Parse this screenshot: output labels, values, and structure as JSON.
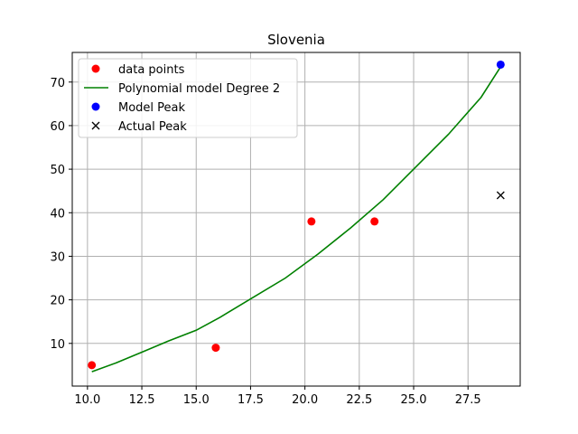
{
  "chart_data": {
    "type": "scatter",
    "title": "Slovenia",
    "xlabel": "",
    "ylabel": "",
    "xlim": [
      9.3,
      29.9
    ],
    "ylim": [
      0.2,
      76.8
    ],
    "xticks": [
      10.0,
      12.5,
      15.0,
      17.5,
      20.0,
      22.5,
      25.0,
      27.5
    ],
    "xtick_labels": [
      "10.0",
      "12.5",
      "15.0",
      "17.5",
      "20.0",
      "22.5",
      "25.0",
      "27.5"
    ],
    "yticks": [
      10,
      20,
      30,
      40,
      50,
      60,
      70
    ],
    "ytick_labels": [
      "10",
      "20",
      "30",
      "40",
      "50",
      "60",
      "70"
    ],
    "grid": true,
    "legend_placement": "top-left",
    "legend": [
      {
        "label": "data points",
        "marker": "circle",
        "color": "#ff0000"
      },
      {
        "label": "Polynomial model Degree 2",
        "marker": "line",
        "color": "#008000"
      },
      {
        "label": "Model Peak",
        "marker": "circle",
        "color": "#0000ff"
      },
      {
        "label": "Actual Peak",
        "marker": "x",
        "color": "#000000"
      }
    ],
    "series": [
      {
        "name": "data points",
        "kind": "scatter",
        "marker": "circle",
        "color": "#ff0000",
        "x": [
          10.2,
          15.9,
          20.3,
          23.2
        ],
        "y": [
          5,
          9,
          38,
          38
        ]
      },
      {
        "name": "Polynomial model Degree 2",
        "kind": "line",
        "color": "#008000",
        "x": [
          10.2,
          11.3,
          12.6,
          13.7,
          15.0,
          16.1,
          17.6,
          19.1,
          20.6,
          22.1,
          23.6,
          25.1,
          26.6,
          28.1,
          29.0
        ],
        "y": [
          3.5,
          5.5,
          8.2,
          10.5,
          13.0,
          16.0,
          20.5,
          25.0,
          30.5,
          36.5,
          43.0,
          50.5,
          58.0,
          66.5,
          73.5
        ]
      },
      {
        "name": "Model Peak",
        "kind": "scatter",
        "marker": "circle",
        "color": "#0000ff",
        "x": [
          29.0
        ],
        "y": [
          74
        ]
      },
      {
        "name": "Actual Peak",
        "kind": "scatter",
        "marker": "x",
        "color": "#000000",
        "x": [
          29.0
        ],
        "y": [
          44
        ]
      }
    ]
  }
}
